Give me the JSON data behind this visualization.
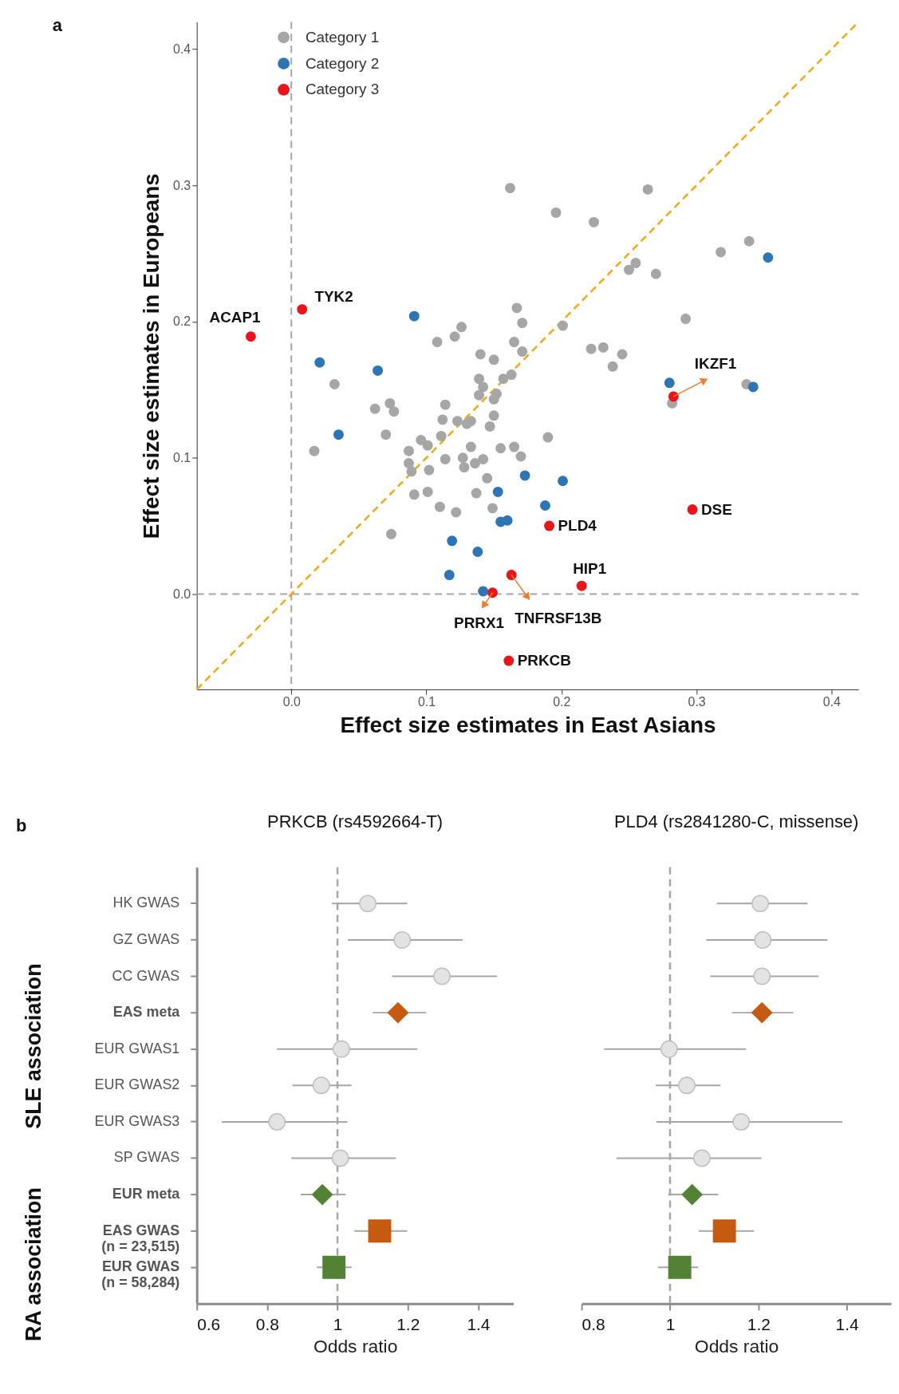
{
  "chart_data": [
    {
      "type": "scatter",
      "xlabel": "Effect size estimates in East Asians",
      "ylabel": "Effect size estimates in Europeans",
      "xlim": [
        -0.07,
        0.42
      ],
      "ylim": [
        -0.07,
        0.42
      ],
      "xticks": [
        {
          "value": 0,
          "label": "0.0"
        },
        {
          "value": 0.1,
          "label": "0.1"
        },
        {
          "value": 0.2,
          "label": "0.2"
        },
        {
          "value": 0.3,
          "label": "0.3"
        },
        {
          "value": 0.4,
          "label": "0.4"
        }
      ],
      "yticks": [
        {
          "value": 0,
          "label": "0.0"
        },
        {
          "value": 0.1,
          "label": "0.1"
        },
        {
          "value": 0.2,
          "label": "0.2"
        },
        {
          "value": 0.3,
          "label": "0.3"
        },
        {
          "value": 0.4,
          "label": "0.4"
        }
      ],
      "legend": "top left",
      "marker": "circle",
      "series": [
        {
          "name": "Category 1",
          "color": "#a6a6a6",
          "x": [
            0.162,
            0.264,
            0.196,
            0.224,
            0.318,
            0.339,
            0.25,
            0.255,
            0.27,
            0.292,
            0.201,
            0.167,
            0.171,
            0.126,
            0.121,
            0.108,
            0.165,
            0.171,
            0.14,
            0.15,
            0.222,
            0.231,
            0.245,
            0.238,
            0.282,
            0.337,
            0.032,
            0.062,
            0.073,
            0.076,
            0.07,
            0.017,
            0.114,
            0.112,
            0.123,
            0.133,
            0.13,
            0.139,
            0.142,
            0.139,
            0.152,
            0.15,
            0.157,
            0.163,
            0.15,
            0.147,
            0.096,
            0.101,
            0.087,
            0.087,
            0.089,
            0.111,
            0.114,
            0.102,
            0.133,
            0.127,
            0.142,
            0.128,
            0.136,
            0.155,
            0.165,
            0.17,
            0.19,
            0.145,
            0.091,
            0.101,
            0.137,
            0.11,
            0.122,
            0.149,
            0.074
          ],
          "values": [
            0.298,
            0.297,
            0.28,
            0.273,
            0.251,
            0.259,
            0.238,
            0.243,
            0.235,
            0.202,
            0.197,
            0.21,
            0.199,
            0.196,
            0.189,
            0.185,
            0.185,
            0.178,
            0.176,
            0.172,
            0.18,
            0.181,
            0.176,
            0.167,
            0.14,
            0.154,
            0.154,
            0.136,
            0.14,
            0.134,
            0.117,
            0.105,
            0.139,
            0.128,
            0.127,
            0.127,
            0.125,
            0.158,
            0.152,
            0.146,
            0.147,
            0.143,
            0.158,
            0.161,
            0.131,
            0.123,
            0.113,
            0.109,
            0.105,
            0.096,
            0.09,
            0.116,
            0.099,
            0.091,
            0.108,
            0.1,
            0.099,
            0.093,
            0.096,
            0.107,
            0.108,
            0.101,
            0.115,
            0.085,
            0.073,
            0.075,
            0.074,
            0.064,
            0.06,
            0.063,
            0.044
          ]
        },
        {
          "name": "Category 2",
          "color": "#2e75b6",
          "x": [
            0.091,
            0.021,
            0.064,
            0.035,
            0.353,
            0.28,
            0.342,
            0.173,
            0.153,
            0.201,
            0.188,
            0.155,
            0.16,
            0.119,
            0.138,
            0.117,
            0.142
          ],
          "values": [
            0.204,
            0.17,
            0.164,
            0.117,
            0.247,
            0.155,
            0.152,
            0.087,
            0.075,
            0.083,
            0.065,
            0.053,
            0.054,
            0.039,
            0.031,
            0.014,
            0.002
          ]
        },
        {
          "name": "Category 3",
          "color": "#e8161b",
          "x": [
            -0.03,
            0.008,
            0.283,
            0.297,
            0.191,
            0.215,
            0.149,
            0.163,
            0.161
          ],
          "values": [
            0.189,
            0.209,
            0.145,
            0.062,
            0.05,
            0.006,
            0.001,
            0.014,
            -0.049
          ]
        },
        {
          "type": "line",
          "color": "#f0a818",
          "line_style": "dashed",
          "marker": "none",
          "x": [
            -0.07,
            0.42
          ],
          "values": [
            -0.07,
            0.42
          ]
        }
      ],
      "ref_lines": [
        {
          "axis": "x",
          "value": 0,
          "color": "#a6a6a6",
          "line_style": "dashed"
        },
        {
          "axis": "y",
          "value": 0,
          "color": "#a6a6a6",
          "line_style": "dashed"
        }
      ],
      "annotations": [
        {
          "text": "ACAP1",
          "x": -0.03,
          "y": 0.189
        },
        {
          "text": "TYK2",
          "x": 0.008,
          "y": 0.209
        },
        {
          "text": "IKZF1",
          "x": 0.283,
          "y": 0.145
        },
        {
          "text": "DSE",
          "x": 0.297,
          "y": 0.062
        },
        {
          "text": "PLD4",
          "x": 0.191,
          "y": 0.05
        },
        {
          "text": "HIP1",
          "x": 0.215,
          "y": 0.006
        },
        {
          "text": "PRRX1",
          "x": 0.149,
          "y": 0.001
        },
        {
          "text": "TNFRSF13B",
          "x": 0.163,
          "y": 0.014
        },
        {
          "text": "PRKCB",
          "x": 0.161,
          "y": -0.049
        },
        "a"
      ]
    },
    {
      "type": "scatter",
      "orientation": "horizontal",
      "title": "PRKCB (rs4592664-T)",
      "xlabel": "Odds ratio",
      "categories": [
        "HK GWAS",
        "GZ GWAS",
        "CC GWAS",
        "EAS meta",
        "EUR GWAS1",
        "EUR GWAS2",
        "EUR GWAS3",
        "SP GWAS",
        "EUR meta",
        "EAS GWAS (n = 23,515)",
        "EUR GWAS (n = 58,284)"
      ],
      "xlim": [
        0.6,
        1.5
      ],
      "xticks": [
        0.6,
        0.8,
        1,
        1.2,
        1.4
      ],
      "ref_lines": [
        {
          "axis": "x",
          "value": 1,
          "color": "#a6a6a6",
          "line_style": "dashed"
        }
      ],
      "series": [
        {
          "marker": "circle",
          "color": "#e3e3e3",
          "values": [
            1.086,
            1.184,
            1.297,
            null,
            1.011,
            0.954,
            0.828,
            1.008,
            null,
            null,
            null
          ],
          "errors": [
            [
              0.984,
              1.198
            ],
            [
              1.029,
              1.356
            ],
            [
              1.155,
              1.454
            ],
            null,
            [
              0.828,
              1.227
            ],
            [
              0.872,
              1.04
            ],
            [
              0.671,
              1.028
            ],
            [
              0.869,
              1.166
            ],
            null,
            null,
            null
          ]
        },
        {
          "marker": "diamond",
          "color": "#c55a11",
          "values": [
            null,
            null,
            null,
            1.172,
            null,
            null,
            null,
            null,
            null,
            null,
            null
          ],
          "errors": [
            null,
            null,
            null,
            [
              1.1,
              1.252
            ],
            null,
            null,
            null,
            null,
            null,
            null,
            null
          ]
        },
        {
          "marker": "diamond",
          "color": "#548235",
          "values": [
            null,
            null,
            null,
            null,
            null,
            null,
            null,
            null,
            0.957,
            null,
            null
          ],
          "errors": [
            null,
            null,
            null,
            null,
            null,
            null,
            null,
            null,
            [
              0.895,
              1.023
            ],
            null,
            null
          ]
        },
        {
          "marker": "square",
          "color": "#c55a11",
          "values": [
            null,
            null,
            null,
            null,
            null,
            null,
            null,
            null,
            null,
            1.12,
            null
          ],
          "errors": [
            null,
            null,
            null,
            null,
            null,
            null,
            null,
            null,
            null,
            [
              1.048,
              1.198
            ],
            null
          ]
        },
        {
          "marker": "square",
          "color": "#548235",
          "values": [
            null,
            null,
            null,
            null,
            null,
            null,
            null,
            null,
            null,
            null,
            0.99
          ],
          "errors": [
            null,
            null,
            null,
            null,
            null,
            null,
            null,
            null,
            null,
            null,
            [
              0.941,
              1.04
            ]
          ]
        }
      ],
      "annotations": [
        "b",
        "SLE association",
        "RA association"
      ]
    },
    {
      "type": "scatter",
      "orientation": "horizontal",
      "title": "PLD4 (rs2841280-C, missense)",
      "xlabel": "Odds ratio",
      "tick_labels": "x",
      "categories": [
        null,
        null,
        null,
        null,
        null,
        null,
        null,
        null,
        null,
        null,
        null
      ],
      "xlim": [
        0.8,
        1.5
      ],
      "xticks": [
        0.8,
        1,
        1.2,
        1.4
      ],
      "ref_lines": [
        {
          "axis": "x",
          "value": 1,
          "color": "#a6a6a6",
          "line_style": "dashed"
        }
      ],
      "series": [
        {
          "marker": "circle",
          "color": "#e3e3e3",
          "values": [
            1.204,
            1.21,
            1.208,
            null,
            0.998,
            1.038,
            1.161,
            1.072,
            null,
            null,
            null
          ],
          "errors": [
            [
              1.106,
              1.311
            ],
            [
              1.082,
              1.356
            ],
            [
              1.091,
              1.336
            ],
            null,
            [
              0.851,
              1.172
            ],
            [
              0.968,
              1.114
            ],
            [
              0.969,
              1.39
            ],
            [
              0.879,
              1.207
            ],
            null,
            null,
            null
          ]
        },
        {
          "marker": "diamond",
          "color": "#c55a11",
          "values": [
            null,
            null,
            null,
            1.208,
            null,
            null,
            null,
            null,
            null,
            null,
            null
          ],
          "errors": [
            null,
            null,
            null,
            [
              1.14,
              1.279
            ],
            null,
            null,
            null,
            null,
            null,
            null,
            null
          ]
        },
        {
          "marker": "diamond",
          "color": "#548235",
          "values": [
            null,
            null,
            null,
            null,
            null,
            null,
            null,
            null,
            1.05,
            null,
            null
          ],
          "errors": [
            null,
            null,
            null,
            null,
            null,
            null,
            null,
            null,
            [
              0.996,
              1.109
            ],
            null,
            null
          ]
        },
        {
          "marker": "square",
          "color": "#c55a11",
          "values": [
            null,
            null,
            null,
            null,
            null,
            null,
            null,
            null,
            null,
            1.123,
            null
          ],
          "errors": [
            null,
            null,
            null,
            null,
            null,
            null,
            null,
            null,
            null,
            [
              1.065,
              1.19
            ],
            null
          ]
        },
        {
          "marker": "square",
          "color": "#548235",
          "values": [
            null,
            null,
            null,
            null,
            null,
            null,
            null,
            null,
            null,
            null,
            1.022
          ],
          "errors": [
            null,
            null,
            null,
            null,
            null,
            null,
            null,
            null,
            null,
            null,
            [
              0.973,
              1.064
            ]
          ]
        }
      ]
    }
  ]
}
